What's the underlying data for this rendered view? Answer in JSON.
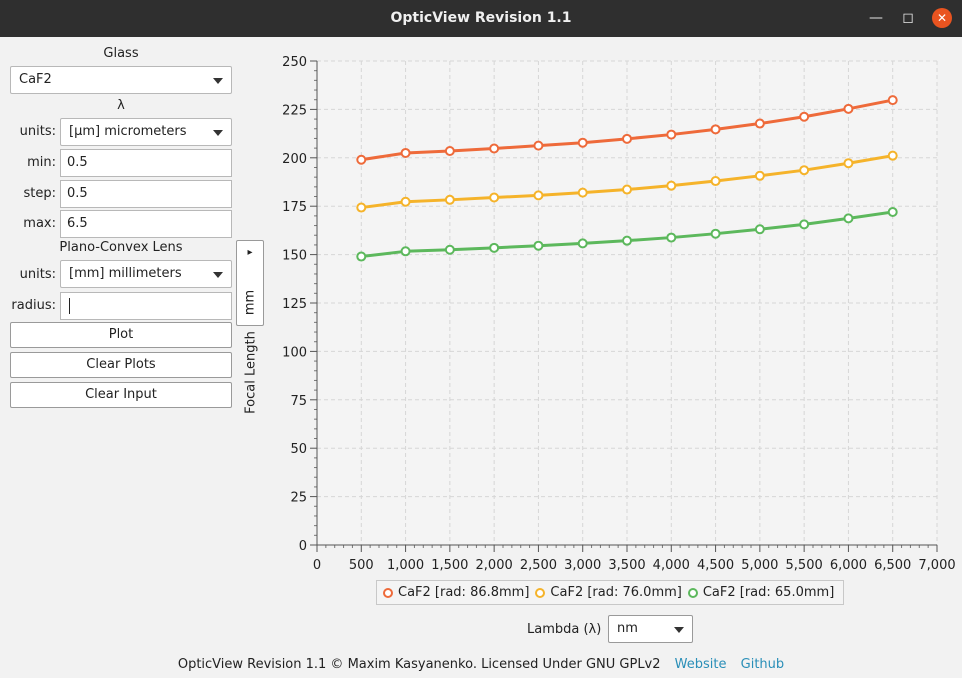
{
  "window": {
    "title": "OpticView Revision 1.1"
  },
  "left_panel": {
    "glass_label": "Glass",
    "glass_value": "CaF2",
    "lambda_label": "λ",
    "lambda_units_label": "units:",
    "lambda_units_value": "[μm] micrometers",
    "min_label": "min:",
    "min_value": "0.5",
    "step_label": "step:",
    "step_value": "0.5",
    "max_label": "max:",
    "max_value": "6.5",
    "lens_label": "Plano-Convex Lens",
    "lens_units_label": "units:",
    "lens_units_value": "[mm] millimeters",
    "radius_label": "radius:",
    "radius_value": "",
    "plot_button": "Plot",
    "clear_plots_button": "Clear Plots",
    "clear_input_button": "Clear Input"
  },
  "y_unit_selector": {
    "value": "mm",
    "arrow": "▸"
  },
  "y_axis_label": "Focal Length",
  "x_axis": {
    "label": "Lambda (λ)",
    "unit_value": "nm"
  },
  "colors": {
    "series1": "#ee6a3a",
    "series2": "#f5b32a",
    "series3": "#5cb85c",
    "close": "#e95420",
    "link": "#2a8fb8"
  },
  "chart_data": {
    "type": "line",
    "xlabel": "",
    "ylabel": "Focal Length",
    "xlim": [
      0,
      7000
    ],
    "ylim": [
      0,
      250
    ],
    "x_ticks": [
      "0",
      "500",
      "1,000",
      "1,500",
      "2,000",
      "2,500",
      "3,000",
      "3,500",
      "4,000",
      "4,500",
      "5,000",
      "5,500",
      "6,000",
      "6,500",
      "7,000"
    ],
    "y_ticks": [
      "0",
      "25",
      "50",
      "75",
      "100",
      "125",
      "150",
      "175",
      "200",
      "225",
      "250"
    ],
    "grid": true,
    "legend_position": "bottom",
    "x": [
      500,
      1000,
      1500,
      2000,
      2500,
      3000,
      3500,
      4000,
      4500,
      5000,
      5500,
      6000,
      6500
    ],
    "series": [
      {
        "name": "CaF2 [rad: 86.8mm]",
        "color": "#ee6a3a",
        "values": [
          199,
          202.5,
          203.5,
          204.8,
          206.3,
          207.8,
          209.8,
          212,
          214.7,
          217.7,
          221.2,
          225.3,
          229.8
        ]
      },
      {
        "name": "CaF2 [rad: 76.0mm]",
        "color": "#f5b32a",
        "values": [
          174.3,
          177.3,
          178.3,
          179.5,
          180.6,
          182,
          183.6,
          185.6,
          188,
          190.7,
          193.6,
          197.2,
          201.1
        ]
      },
      {
        "name": "CaF2 [rad: 65.0mm]",
        "color": "#5cb85c",
        "values": [
          149,
          151.7,
          152.5,
          153.5,
          154.6,
          155.8,
          157.2,
          158.8,
          160.8,
          163.1,
          165.6,
          168.7,
          172
        ]
      }
    ]
  },
  "footer": {
    "text": "OpticView Revision 1.1 © Maxim Kasyanenko. Licensed Under GNU GPLv2",
    "website": "Website",
    "github": "Github"
  }
}
